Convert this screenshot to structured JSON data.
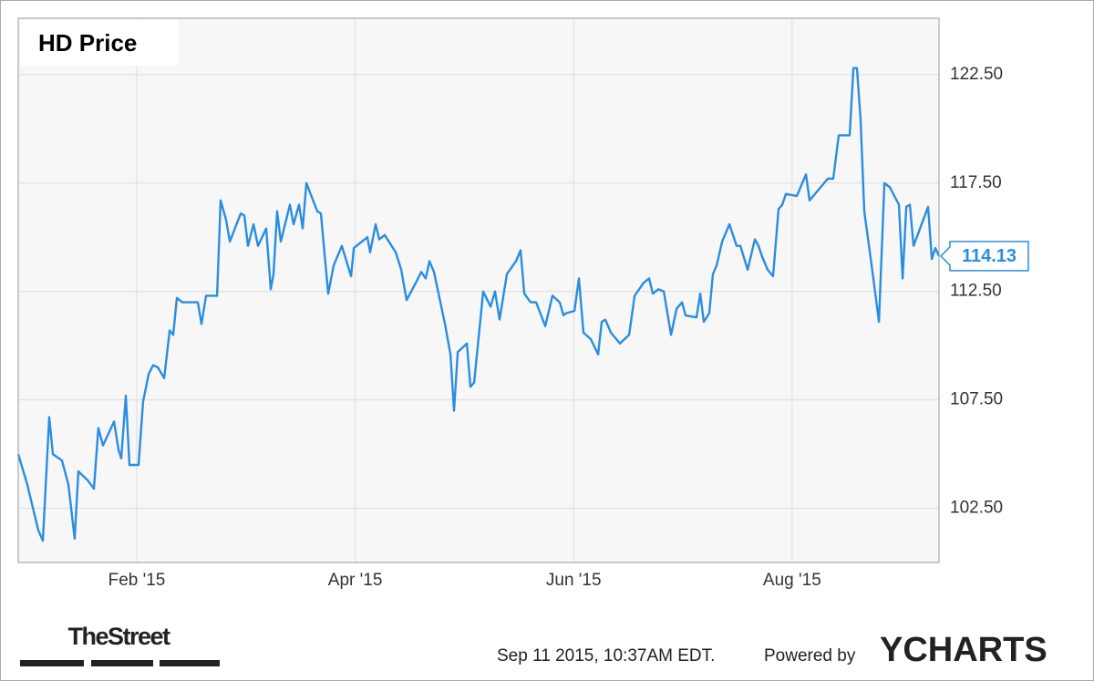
{
  "chart_data": {
    "type": "line",
    "title": "HD Price",
    "x": [
      -0.085,
      -0.002,
      0.098,
      0.14,
      0.199,
      0.232,
      0.316,
      0.374,
      0.432,
      0.466,
      0.549,
      0.608,
      0.649,
      0.691,
      0.792,
      0.833,
      0.858,
      0.9,
      0.933,
      1.017,
      1.058,
      1.109,
      1.15,
      1.192,
      1.251,
      1.301,
      1.334,
      1.367,
      1.417,
      1.559,
      1.593,
      1.634,
      1.735,
      1.768,
      1.818,
      1.852,
      1.952,
      1.985,
      2.018,
      2.069,
      2.11,
      2.185,
      2.227,
      2.252,
      2.285,
      2.319,
      2.402,
      2.436,
      2.486,
      2.519,
      2.553,
      2.653,
      2.686,
      2.753,
      2.803,
      2.878,
      2.92,
      2.962,
      2.987,
      3.112,
      3.137,
      3.187,
      3.22,
      3.27,
      3.371,
      3.421,
      3.471,
      3.555,
      3.605,
      3.646,
      3.68,
      3.721,
      3.822,
      3.872,
      3.905,
      3.939,
      4.022,
      4.055,
      4.089,
      4.172,
      4.239,
      4.28,
      4.322,
      4.389,
      4.472,
      4.514,
      4.548,
      4.606,
      4.656,
      4.74,
      4.806,
      4.873,
      4.907,
      4.932,
      5.007,
      5.048,
      5.09,
      5.157,
      5.224,
      5.257,
      5.29,
      5.341,
      5.424,
      5.508,
      5.558,
      5.641,
      5.691,
      5.725,
      5.775,
      5.825,
      5.892,
      5.942,
      5.992,
      6.025,
      6.125,
      6.159,
      6.192,
      6.242,
      6.275,
      6.309,
      6.359,
      6.426,
      6.492,
      6.526,
      6.593,
      6.659,
      6.692,
      6.726,
      6.776,
      6.826,
      6.876,
      6.91,
      6.943,
      7.043,
      7.127,
      7.16,
      7.26,
      7.327,
      7.377,
      7.427,
      7.527,
      7.561,
      7.594,
      7.627,
      7.661,
      7.728,
      7.795,
      7.845,
      7.895,
      7.978,
      8.012,
      8.045,
      8.078,
      8.112,
      8.245,
      8.279,
      8.312,
      8.345
    ],
    "series": [
      {
        "name": "HD",
        "color": "#2a8de0",
        "values": [
          105.0,
          103.6,
          101.5,
          101.0,
          106.7,
          105.0,
          104.7,
          103.6,
          101.1,
          104.2,
          103.8,
          103.4,
          106.2,
          105.4,
          106.5,
          105.2,
          104.8,
          107.7,
          104.5,
          104.5,
          107.4,
          108.7,
          109.1,
          109.0,
          108.5,
          110.7,
          110.5,
          112.2,
          112.0,
          112.0,
          111.0,
          112.3,
          112.3,
          116.7,
          115.8,
          114.8,
          116.1,
          116.0,
          114.6,
          115.6,
          114.6,
          115.4,
          112.6,
          113.3,
          116.2,
          114.8,
          116.5,
          115.6,
          116.5,
          115.4,
          117.5,
          116.2,
          116.1,
          112.4,
          113.7,
          114.6,
          113.9,
          113.2,
          114.5,
          115.0,
          114.3,
          115.6,
          114.9,
          115.1,
          114.3,
          113.5,
          112.1,
          112.9,
          113.4,
          113.1,
          113.9,
          113.4,
          111.0,
          109.6,
          107.0,
          109.7,
          110.1,
          108.1,
          108.3,
          112.5,
          111.8,
          112.5,
          111.2,
          113.3,
          113.9,
          114.4,
          112.4,
          112.0,
          112.0,
          110.9,
          112.3,
          112.0,
          111.4,
          111.5,
          111.6,
          113.1,
          110.6,
          110.3,
          109.6,
          111.1,
          111.2,
          110.6,
          110.1,
          110.5,
          112.3,
          112.9,
          113.1,
          112.4,
          112.6,
          112.5,
          110.5,
          111.7,
          112.0,
          111.4,
          111.3,
          112.4,
          111.1,
          111.5,
          113.3,
          113.7,
          114.8,
          115.6,
          114.6,
          114.6,
          113.5,
          114.9,
          114.6,
          114.1,
          113.5,
          113.2,
          116.3,
          116.5,
          117.0,
          116.9,
          117.9,
          116.7,
          117.3,
          117.7,
          117.7,
          119.7,
          119.7,
          122.8,
          122.8,
          120.4,
          116.2,
          113.7,
          111.1,
          117.5,
          117.3,
          116.5,
          113.1,
          116.4,
          116.5,
          114.6,
          116.4,
          114.0,
          114.5,
          114.13
        ]
      }
    ],
    "xlim": [
      -0.085,
      8.345
    ],
    "xticks": [
      {
        "value": 1,
        "label": "Feb '15"
      },
      {
        "value": 3,
        "label": "Apr '15"
      },
      {
        "value": 5,
        "label": "Jun '15"
      },
      {
        "value": 7,
        "label": "Aug '15"
      }
    ],
    "ylim": [
      100,
      125.1
    ],
    "yticks": [
      {
        "value": 102.5,
        "label": "102.50"
      },
      {
        "value": 107.5,
        "label": "107.50"
      },
      {
        "value": 112.5,
        "label": "112.50"
      },
      {
        "value": 117.5,
        "label": "117.50"
      },
      {
        "value": 122.5,
        "label": "122.50"
      }
    ],
    "grid": true
  },
  "footer": {
    "brand": "TheStreet",
    "timestamp": "Sep 11 2015, 10:37AM EDT.",
    "powered_by": "Powered by",
    "provider": "YCHARTS"
  }
}
